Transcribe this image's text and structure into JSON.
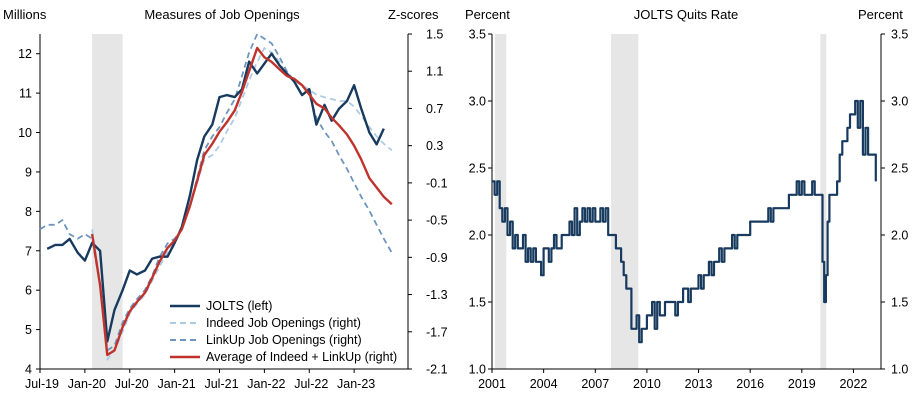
{
  "chart_data": [
    {
      "type": "line",
      "title": "Measures of Job Openings",
      "left_axis_label": "Millions",
      "right_axis_label": "Z-scores",
      "x_ticks": [
        "Jul-19",
        "Jan-20",
        "Jul-20",
        "Jan-21",
        "Jul-21",
        "Jan-22",
        "Jul-22",
        "Jan-23"
      ],
      "x_range": [
        2019.5,
        2023.6
      ],
      "ylim_left": [
        4,
        12.5
      ],
      "yticks_left": [
        4,
        5,
        6,
        7,
        8,
        9,
        10,
        11,
        12
      ],
      "ylim_right": [
        -2.1,
        1.5
      ],
      "yticks_right": [
        "-2.1",
        "-1.7",
        "-1.3",
        "-0.9",
        "-0.5",
        "-0.1",
        "0.3",
        "0.7",
        "1.1",
        "1.5"
      ],
      "recession_shading": [
        2020.08,
        2020.42
      ],
      "legend_position": "bottom-right",
      "series": [
        {
          "name": "JOLTS (left)",
          "axis": "left",
          "color": "#173a5e",
          "style": "solid",
          "x": [
            2019.58,
            2019.67,
            2019.75,
            2019.83,
            2019.92,
            2020.0,
            2020.08,
            2020.17,
            2020.25,
            2020.33,
            2020.42,
            2020.5,
            2020.58,
            2020.67,
            2020.75,
            2020.83,
            2020.92,
            2021.0,
            2021.08,
            2021.17,
            2021.25,
            2021.33,
            2021.42,
            2021.5,
            2021.58,
            2021.67,
            2021.75,
            2021.83,
            2021.92,
            2022.0,
            2022.08,
            2022.17,
            2022.25,
            2022.33,
            2022.42,
            2022.5,
            2022.58,
            2022.67,
            2022.75,
            2022.83,
            2022.92,
            2023.0,
            2023.08,
            2023.17,
            2023.25,
            2023.33
          ],
          "values": [
            7.05,
            7.15,
            7.15,
            7.3,
            6.95,
            6.75,
            7.2,
            7.0,
            4.7,
            5.5,
            6.0,
            6.5,
            6.4,
            6.5,
            6.8,
            6.85,
            6.85,
            7.2,
            7.6,
            8.4,
            9.3,
            9.9,
            10.2,
            10.9,
            10.95,
            10.9,
            11.1,
            11.8,
            11.5,
            11.75,
            12.0,
            11.7,
            11.5,
            11.3,
            10.95,
            11.1,
            10.2,
            10.7,
            10.3,
            10.6,
            10.8,
            11.2,
            10.6,
            10.0,
            9.7,
            10.1
          ]
        },
        {
          "name": "Indeed Job Openings (right)",
          "axis": "right",
          "color": "#aecbe4",
          "style": "dashed",
          "x": [
            2020.08,
            2020.17,
            2020.25,
            2020.33,
            2020.42,
            2020.5,
            2020.58,
            2020.67,
            2020.75,
            2020.83,
            2020.92,
            2021.0,
            2021.08,
            2021.17,
            2021.25,
            2021.33,
            2021.42,
            2021.5,
            2021.58,
            2021.67,
            2021.75,
            2021.83,
            2021.92,
            2022.0,
            2022.08,
            2022.17,
            2022.25,
            2022.33,
            2022.42,
            2022.5,
            2022.58,
            2022.67,
            2022.75,
            2022.83,
            2022.92,
            2023.0,
            2023.08,
            2023.17,
            2023.25,
            2023.33,
            2023.42
          ],
          "values": [
            -0.6,
            -1.2,
            -2.0,
            -1.9,
            -1.7,
            -1.5,
            -1.4,
            -1.3,
            -1.15,
            -1.0,
            -0.85,
            -0.75,
            -0.6,
            -0.35,
            -0.1,
            0.15,
            0.2,
            0.3,
            0.45,
            0.6,
            0.8,
            1.0,
            1.2,
            1.35,
            1.3,
            1.2,
            1.05,
            1.0,
            0.95,
            0.9,
            0.85,
            0.82,
            0.8,
            0.78,
            0.78,
            0.72,
            0.62,
            0.5,
            0.4,
            0.32,
            0.25
          ]
        },
        {
          "name": "LinkUp Job Openings (right)",
          "axis": "right",
          "color": "#6e95bd",
          "style": "dashed",
          "x": [
            2019.5,
            2019.58,
            2019.67,
            2019.75,
            2019.83,
            2019.92,
            2020.0,
            2020.08,
            2020.17,
            2020.25,
            2020.33,
            2020.42,
            2020.5,
            2020.58,
            2020.67,
            2020.75,
            2020.83,
            2020.92,
            2021.0,
            2021.08,
            2021.17,
            2021.25,
            2021.33,
            2021.42,
            2021.5,
            2021.58,
            2021.67,
            2021.75,
            2021.83,
            2021.92,
            2022.0,
            2022.08,
            2022.17,
            2022.25,
            2022.33,
            2022.42,
            2022.5,
            2022.58,
            2022.67,
            2022.75,
            2022.83,
            2022.92,
            2023.0,
            2023.08,
            2023.17,
            2023.25,
            2023.33,
            2023.42
          ],
          "values": [
            -0.6,
            -0.55,
            -0.55,
            -0.5,
            -0.65,
            -0.7,
            -0.65,
            -0.7,
            -1.2,
            -1.9,
            -1.85,
            -1.6,
            -1.45,
            -1.35,
            -1.25,
            -1.1,
            -0.9,
            -0.75,
            -0.7,
            -0.6,
            -0.35,
            -0.05,
            0.25,
            0.4,
            0.5,
            0.65,
            0.8,
            1.05,
            1.3,
            1.5,
            1.45,
            1.4,
            1.25,
            1.1,
            1.0,
            0.95,
            0.85,
            0.6,
            0.45,
            0.35,
            0.2,
            0.05,
            -0.1,
            -0.25,
            -0.4,
            -0.55,
            -0.7,
            -0.85
          ]
        },
        {
          "name": "Average of Indeed + LinkUp (right)",
          "axis": "right",
          "color": "#c0332c",
          "style": "solid",
          "x": [
            2020.08,
            2020.17,
            2020.25,
            2020.33,
            2020.42,
            2020.5,
            2020.58,
            2020.67,
            2020.75,
            2020.83,
            2020.92,
            2021.0,
            2021.08,
            2021.17,
            2021.25,
            2021.33,
            2021.42,
            2021.5,
            2021.58,
            2021.67,
            2021.75,
            2021.83,
            2021.92,
            2022.0,
            2022.08,
            2022.17,
            2022.25,
            2022.33,
            2022.42,
            2022.5,
            2022.58,
            2022.67,
            2022.75,
            2022.83,
            2022.92,
            2023.0,
            2023.08,
            2023.17,
            2023.25,
            2023.33,
            2023.42
          ],
          "values": [
            -0.65,
            -1.2,
            -1.95,
            -1.9,
            -1.65,
            -1.48,
            -1.38,
            -1.28,
            -1.12,
            -0.95,
            -0.8,
            -0.72,
            -0.6,
            -0.35,
            -0.08,
            0.2,
            0.32,
            0.45,
            0.55,
            0.68,
            0.88,
            1.1,
            1.35,
            1.25,
            1.2,
            1.12,
            1.05,
            1.02,
            0.95,
            0.85,
            0.75,
            0.7,
            0.6,
            0.52,
            0.42,
            0.3,
            0.15,
            -0.05,
            -0.15,
            -0.25,
            -0.33
          ]
        }
      ]
    },
    {
      "type": "line",
      "title": "JOLTS  Quits Rate",
      "left_axis_label": "Percent",
      "right_axis_label": "Percent",
      "x_ticks": [
        "2001",
        "2004",
        "2007",
        "2010",
        "2013",
        "2016",
        "2019",
        "2022"
      ],
      "x_tick_values": [
        2001,
        2004,
        2007,
        2010,
        2013,
        2016,
        2019,
        2022
      ],
      "x_range": [
        2001,
        2023.6
      ],
      "ylim": [
        1.0,
        3.5
      ],
      "yticks": [
        "1.0",
        "1.5",
        "2.0",
        "2.5",
        "3.0",
        "3.5"
      ],
      "recession_shading": [
        [
          2001.17,
          2001.83
        ],
        [
          2007.92,
          2009.5
        ],
        [
          2020.08,
          2020.42
        ]
      ],
      "series": [
        {
          "name": "",
          "color": "#173a5e",
          "x": [
            2001.0,
            2001.15,
            2001.3,
            2001.45,
            2001.6,
            2001.75,
            2001.9,
            2002.05,
            2002.2,
            2002.35,
            2002.5,
            2002.65,
            2002.8,
            2002.95,
            2003.1,
            2003.25,
            2003.4,
            2003.55,
            2003.7,
            2003.85,
            2004.0,
            2004.15,
            2004.3,
            2004.45,
            2004.6,
            2004.75,
            2004.9,
            2005.05,
            2005.2,
            2005.35,
            2005.5,
            2005.65,
            2005.8,
            2005.95,
            2006.1,
            2006.25,
            2006.4,
            2006.55,
            2006.7,
            2006.85,
            2007.0,
            2007.15,
            2007.3,
            2007.45,
            2007.6,
            2007.75,
            2007.9,
            2008.05,
            2008.2,
            2008.35,
            2008.5,
            2008.65,
            2008.8,
            2008.95,
            2009.1,
            2009.25,
            2009.4,
            2009.55,
            2009.7,
            2009.85,
            2010.0,
            2010.15,
            2010.3,
            2010.45,
            2010.6,
            2010.75,
            2010.9,
            2011.05,
            2011.2,
            2011.35,
            2011.5,
            2011.65,
            2011.8,
            2011.95,
            2012.1,
            2012.25,
            2012.4,
            2012.55,
            2012.7,
            2012.85,
            2013.0,
            2013.15,
            2013.3,
            2013.45,
            2013.6,
            2013.75,
            2013.9,
            2014.05,
            2014.2,
            2014.35,
            2014.5,
            2014.65,
            2014.8,
            2014.95,
            2015.1,
            2015.25,
            2015.4,
            2015.55,
            2015.7,
            2015.85,
            2016.0,
            2016.15,
            2016.3,
            2016.45,
            2016.6,
            2016.75,
            2016.9,
            2017.05,
            2017.2,
            2017.35,
            2017.5,
            2017.65,
            2017.8,
            2017.95,
            2018.1,
            2018.25,
            2018.4,
            2018.55,
            2018.7,
            2018.85,
            2019.0,
            2019.15,
            2019.3,
            2019.45,
            2019.6,
            2019.75,
            2019.9,
            2020.05,
            2020.2,
            2020.3,
            2020.4,
            2020.5,
            2020.6,
            2020.75,
            2020.9,
            2021.05,
            2021.2,
            2021.35,
            2021.5,
            2021.65,
            2021.8,
            2021.95,
            2022.1,
            2022.25,
            2022.4,
            2022.55,
            2022.7,
            2022.85,
            2023.0,
            2023.15,
            2023.3
          ],
          "values": [
            2.4,
            2.3,
            2.4,
            2.2,
            2.1,
            2.2,
            2.0,
            2.1,
            1.9,
            2.0,
            1.9,
            1.9,
            2.0,
            1.8,
            1.9,
            1.8,
            1.9,
            1.8,
            1.8,
            1.7,
            1.9,
            1.9,
            1.8,
            1.9,
            2.0,
            1.9,
            1.9,
            2.0,
            2.0,
            2.0,
            2.1,
            2.0,
            2.2,
            2.0,
            2.1,
            2.2,
            2.1,
            2.2,
            2.1,
            2.2,
            2.1,
            2.1,
            2.2,
            2.1,
            2.2,
            2.0,
            2.0,
            2.0,
            1.9,
            1.9,
            1.8,
            1.7,
            1.6,
            1.6,
            1.3,
            1.3,
            1.4,
            1.2,
            1.3,
            1.3,
            1.4,
            1.4,
            1.5,
            1.3,
            1.5,
            1.4,
            1.4,
            1.5,
            1.5,
            1.5,
            1.5,
            1.4,
            1.5,
            1.5,
            1.6,
            1.6,
            1.5,
            1.6,
            1.6,
            1.6,
            1.7,
            1.6,
            1.7,
            1.7,
            1.8,
            1.7,
            1.8,
            1.8,
            1.9,
            1.8,
            1.9,
            1.9,
            1.9,
            2.0,
            1.9,
            2.0,
            2.0,
            2.0,
            2.0,
            2.0,
            2.1,
            2.1,
            2.1,
            2.1,
            2.1,
            2.1,
            2.1,
            2.2,
            2.1,
            2.2,
            2.2,
            2.2,
            2.2,
            2.2,
            2.2,
            2.3,
            2.3,
            2.3,
            2.4,
            2.3,
            2.4,
            2.3,
            2.3,
            2.3,
            2.4,
            2.3,
            2.3,
            2.3,
            1.8,
            1.5,
            1.7,
            2.1,
            2.3,
            2.3,
            2.3,
            2.4,
            2.6,
            2.7,
            2.7,
            2.8,
            2.9,
            2.9,
            3.0,
            2.8,
            3.0,
            2.6,
            2.8,
            2.6,
            2.6,
            2.6,
            2.4
          ]
        }
      ]
    }
  ],
  "legend": {
    "jolts": "JOLTS (left)",
    "indeed": "Indeed Job Openings (right)",
    "linkup": "LinkUp Job Openings (right)",
    "average": "Average of Indeed + LinkUp (right)"
  }
}
